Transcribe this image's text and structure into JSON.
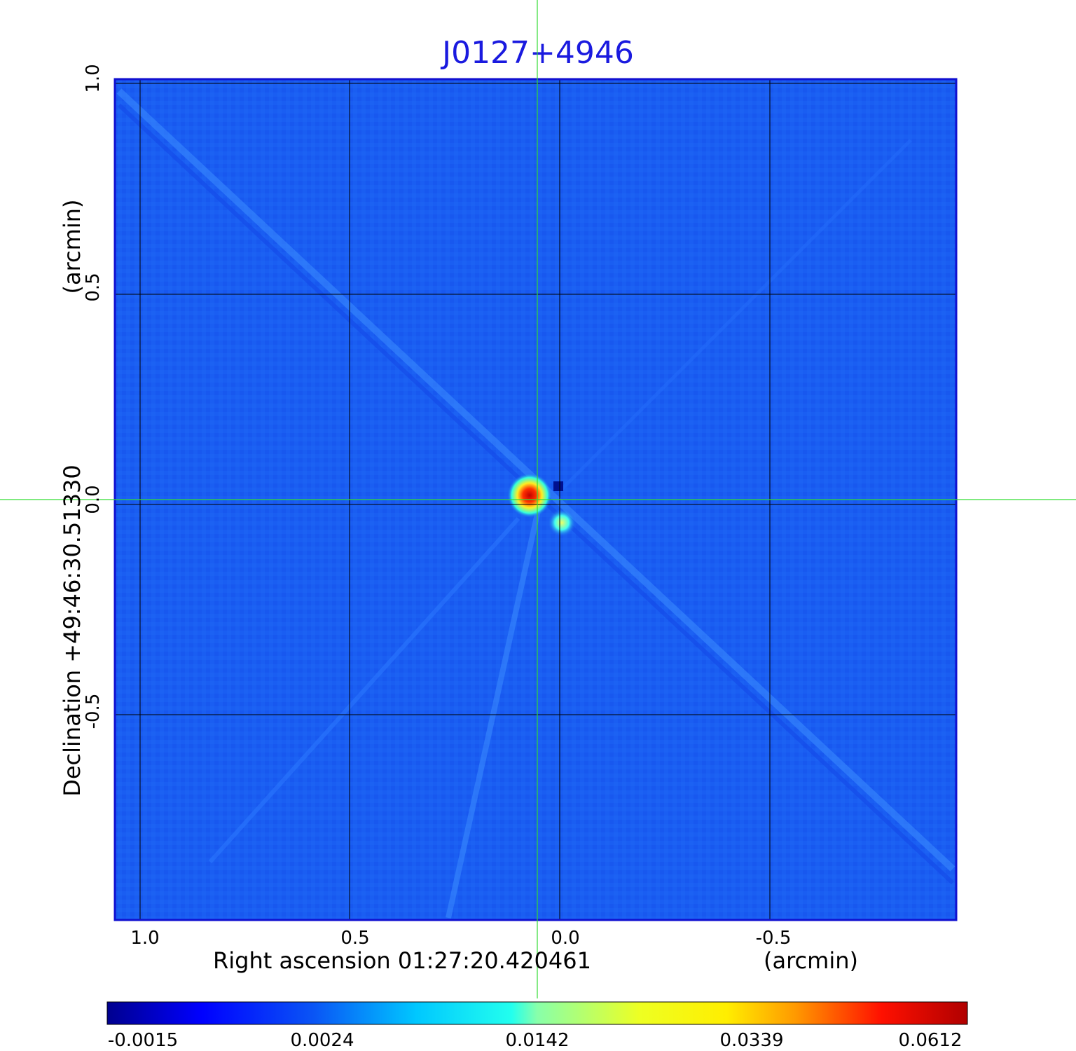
{
  "title": "J0127+4946",
  "x_axis": {
    "label": "Right ascension  01:27:20.420461",
    "unit": "(arcmin)",
    "ticks": [
      "1.0",
      "0.5",
      "0.0",
      "-0.5"
    ]
  },
  "y_axis": {
    "label": "Declination  +49:46:30.51330",
    "unit": "(arcmin)",
    "ticks": [
      "1.0",
      "0.5",
      "0.0",
      "-0.5"
    ]
  },
  "colorbar": {
    "ticks": [
      "-0.0015",
      "0.0024",
      "0.0142",
      "0.0339",
      "0.0612"
    ],
    "colormap": "jet"
  },
  "colors": {
    "title": "#1a1adf",
    "crosshair": "#33dd33",
    "frame": "#1010d0",
    "background_field": "#1a5cf0"
  },
  "image": {
    "description_source": "radio map",
    "peak_region": "center",
    "crosshair_at": [
      0.0,
      0.0
    ]
  }
}
